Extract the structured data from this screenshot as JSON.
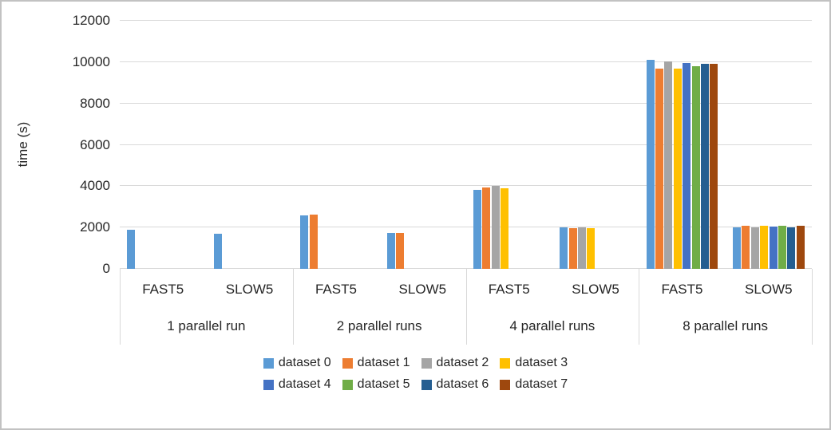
{
  "colors": {
    "frame": "#c2c2c2",
    "gridline": "#d9d9d9",
    "text": "#262626",
    "background": "#ffffff"
  },
  "chart_data": {
    "type": "bar",
    "title": "",
    "xlabel": "",
    "ylabel": "time (s)",
    "ylim": [
      0,
      12000
    ],
    "ytick_interval": 2000,
    "yticks": [
      0,
      2000,
      4000,
      6000,
      8000,
      10000,
      12000
    ],
    "grid": true,
    "legend_position": "bottom",
    "series": [
      {
        "name": "dataset 0",
        "color": "#5B9BD5"
      },
      {
        "name": "dataset 1",
        "color": "#ED7D31"
      },
      {
        "name": "dataset 2",
        "color": "#A5A5A5"
      },
      {
        "name": "dataset 3",
        "color": "#FFC000"
      },
      {
        "name": "dataset 4",
        "color": "#4472C4"
      },
      {
        "name": "dataset 5",
        "color": "#70AD47"
      },
      {
        "name": "dataset 6",
        "color": "#255E91"
      },
      {
        "name": "dataset 7",
        "color": "#9E480E"
      }
    ],
    "groups": [
      {
        "label": "1 parallel run",
        "categories": [
          {
            "label": "FAST5",
            "values": [
              1900,
              null,
              null,
              null,
              null,
              null,
              null,
              null
            ]
          },
          {
            "label": "SLOW5",
            "values": [
              1700,
              null,
              null,
              null,
              null,
              null,
              null,
              null
            ]
          }
        ]
      },
      {
        "label": "2 parallel runs",
        "categories": [
          {
            "label": "FAST5",
            "values": [
              2600,
              2640,
              null,
              null,
              null,
              null,
              null,
              null
            ]
          },
          {
            "label": "SLOW5",
            "values": [
              1750,
              1750,
              null,
              null,
              null,
              null,
              null,
              null
            ]
          }
        ]
      },
      {
        "label": "4 parallel runs",
        "categories": [
          {
            "label": "FAST5",
            "values": [
              3830,
              3950,
              4000,
              3880,
              null,
              null,
              null,
              null
            ]
          },
          {
            "label": "SLOW5",
            "values": [
              2000,
              1970,
              1990,
              1970,
              null,
              null,
              null,
              null
            ]
          }
        ]
      },
      {
        "label": "8 parallel runs",
        "categories": [
          {
            "label": "FAST5",
            "values": [
              10100,
              9700,
              10050,
              9700,
              9950,
              9800,
              9900,
              9900
            ]
          },
          {
            "label": "SLOW5",
            "values": [
              2000,
              2100,
              2010,
              2100,
              2050,
              2070,
              2000,
              2080
            ]
          }
        ]
      }
    ]
  }
}
